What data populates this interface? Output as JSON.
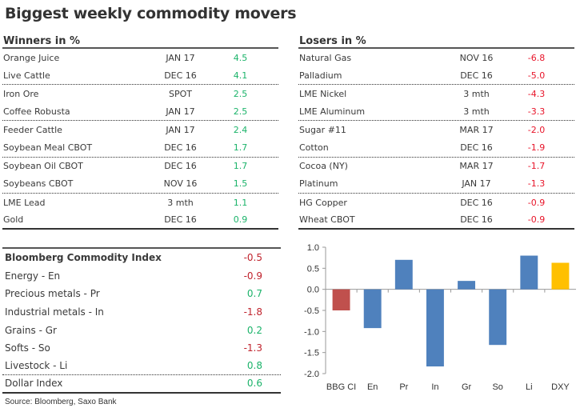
{
  "title": "Biggest weekly commodity movers",
  "winners": {
    "heading": "Winners in %",
    "rows": [
      {
        "name": "Orange Juice",
        "contract": "JAN 17",
        "value": "4.5"
      },
      {
        "name": "Live Cattle",
        "contract": "DEC 16",
        "value": "4.1"
      },
      {
        "name": "Iron Ore",
        "contract": "SPOT",
        "value": "2.5"
      },
      {
        "name": "Coffee Robusta",
        "contract": "JAN 17",
        "value": "2.5"
      },
      {
        "name": "Feeder Cattle",
        "contract": "JAN 17",
        "value": "2.4"
      },
      {
        "name": "Soybean Meal CBOT",
        "contract": "DEC 16",
        "value": "1.7"
      },
      {
        "name": "Soybean Oil CBOT",
        "contract": "DEC 16",
        "value": "1.7"
      },
      {
        "name": "Soybeans CBOT",
        "contract": "NOV 16",
        "value": "1.5"
      },
      {
        "name": "LME Lead",
        "contract": "3 mth",
        "value": "1.1"
      },
      {
        "name": "Gold",
        "contract": "DEC 16",
        "value": "0.9"
      }
    ]
  },
  "losers": {
    "heading": "Losers in %",
    "rows": [
      {
        "name": "Natural Gas",
        "contract": "NOV 16",
        "value": "-6.8"
      },
      {
        "name": "Palladium",
        "contract": "DEC 16",
        "value": "-5.0"
      },
      {
        "name": "LME Nickel",
        "contract": "3 mth",
        "value": "-4.3"
      },
      {
        "name": "LME Aluminum",
        "contract": "3 mth",
        "value": "-3.3"
      },
      {
        "name": "Sugar #11",
        "contract": "MAR 17",
        "value": "-2.0"
      },
      {
        "name": "Cotton",
        "contract": "DEC 16",
        "value": "-1.9"
      },
      {
        "name": "Cocoa (NY)",
        "contract": "MAR 17",
        "value": "-1.7"
      },
      {
        "name": "Platinum",
        "contract": "JAN 17",
        "value": "-1.3"
      },
      {
        "name": "HG Copper",
        "contract": "DEC 16",
        "value": "-0.9"
      },
      {
        "name": "Wheat CBOT",
        "contract": "DEC 16",
        "value": "-0.9"
      }
    ]
  },
  "index_table": {
    "rows": [
      {
        "name": "Bloomberg Commodity Index",
        "value": "-0.5"
      },
      {
        "name": "Energy - En",
        "value": "-0.9"
      },
      {
        "name": "Precious metals - Pr",
        "value": "0.7"
      },
      {
        "name": "Industrial metals - In",
        "value": "-1.8"
      },
      {
        "name": "Grains - Gr",
        "value": "0.2"
      },
      {
        "name": "Softs - So",
        "value": "-1.3"
      },
      {
        "name": "Livestock - Li",
        "value": "0.8"
      },
      {
        "name": "Dollar Index",
        "value": "0.6"
      }
    ]
  },
  "source": "Source: Bloomberg, Saxo Bank",
  "colors": {
    "positive": "#1bb36a",
    "negative": "#e8152a",
    "bar_index": "#c0504d",
    "bar_sector": "#4f81bd",
    "bar_dollar": "#ffc000"
  },
  "chart_data": {
    "type": "bar",
    "title": "",
    "xlabel": "",
    "ylabel": "",
    "categories": [
      "BBG CI",
      "En",
      "Pr",
      "In",
      "Gr",
      "So",
      "Li",
      "DXY"
    ],
    "values": [
      -0.5,
      -0.92,
      0.7,
      -1.83,
      0.2,
      -1.32,
      0.8,
      0.63
    ],
    "bar_colors": [
      "#c0504d",
      "#4f81bd",
      "#4f81bd",
      "#4f81bd",
      "#4f81bd",
      "#4f81bd",
      "#4f81bd",
      "#ffc000"
    ],
    "ylim": [
      -2.0,
      1.0
    ],
    "yticks": [
      "1.0",
      "0.5",
      "0.0",
      "-0.5",
      "-1.0",
      "-1.5",
      "-2.0"
    ],
    "ytick_values": [
      1.0,
      0.5,
      0.0,
      -0.5,
      -1.0,
      -1.5,
      -2.0
    ],
    "grid": false,
    "legend": "none"
  }
}
